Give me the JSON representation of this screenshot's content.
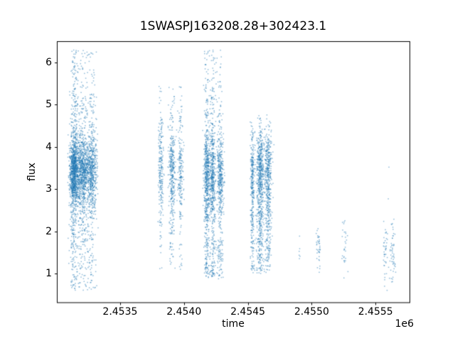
{
  "chart_data": {
    "type": "scatter",
    "title": "1SWASPJ163208.28+302423.1",
    "xlabel": "time",
    "ylabel": "flux",
    "x_offset_label": "1e6",
    "xlim": [
      2453005,
      2455766
    ],
    "ylim": [
      0.318,
      6.505
    ],
    "xticks": [
      2453500,
      2454000,
      2454500,
      2455000,
      2455500
    ],
    "xtick_labels": [
      "2.4535",
      "2.4540",
      "2.4545",
      "2.4550",
      "2.4555"
    ],
    "yticks": [
      1,
      2,
      3,
      4,
      5,
      6
    ],
    "ytick_labels": [
      "1",
      "2",
      "3",
      "4",
      "5",
      "6"
    ],
    "grid": false,
    "legend": null,
    "marker_color": "#1f77b4",
    "marker_alpha": 0.5,
    "marker_size_px": 1.5,
    "axes_color": "#000000",
    "background_color": "#ffffff",
    "description": "SuperWASP light curve: flux vs HJD time, observing seasons appear as dense vertical clusters",
    "clusters": [
      {
        "name": "season-1",
        "n": 3000,
        "t_range": [
          2453090,
          2453330
        ],
        "x_cols": [
          [
            2453139,
            16,
            0.42
          ],
          [
            2453211,
            28,
            0.38
          ],
          [
            2453283,
            18,
            0.2
          ]
        ],
        "flux_range": [
          0.55,
          6.3
        ],
        "flux_mix": [
          [
            "n",
            3.42,
            0.4,
            0.6
          ],
          [
            "n",
            3.55,
            0.8,
            0.26
          ],
          [
            "u",
            4.6,
            6.3,
            0.05
          ],
          [
            "u",
            0.6,
            2.7,
            0.09
          ]
        ]
      },
      {
        "name": "season-2",
        "n": 800,
        "t_range": [
          2453795,
          2454010
        ],
        "x_cols": [
          [
            2453818,
            10,
            0.3
          ],
          [
            2453907,
            13,
            0.42
          ],
          [
            2453974,
            10,
            0.28
          ]
        ],
        "flux_range": [
          1.0,
          5.45
        ],
        "flux_mix": [
          [
            "n",
            3.45,
            0.5,
            0.55
          ],
          [
            "n",
            3.3,
            0.85,
            0.33
          ],
          [
            "u",
            4.4,
            5.45,
            0.05
          ],
          [
            "u",
            1.05,
            2.3,
            0.07
          ]
        ]
      },
      {
        "name": "season-3",
        "n": 1700,
        "t_range": [
          2454145,
          2454320
        ],
        "x_cols": [
          [
            2454179,
            11,
            0.38
          ],
          [
            2454224,
            12,
            0.34
          ],
          [
            2454285,
            13,
            0.28
          ]
        ],
        "flux_range": [
          0.85,
          6.3
        ],
        "flux_mix": [
          [
            "n",
            3.3,
            0.55,
            0.52
          ],
          [
            "n",
            3.1,
            1.0,
            0.33
          ],
          [
            "u",
            4.7,
            6.3,
            0.05
          ],
          [
            "u",
            0.9,
            1.8,
            0.1
          ]
        ]
      },
      {
        "name": "season-4",
        "n": 1500,
        "t_range": [
          2454515,
          2454705
        ],
        "x_cols": [
          [
            2454536,
            8,
            0.22
          ],
          [
            2454597,
            14,
            0.43
          ],
          [
            2454658,
            14,
            0.35
          ]
        ],
        "flux_range": [
          1.0,
          4.8
        ],
        "flux_mix": [
          [
            "n",
            3.45,
            0.42,
            0.45
          ],
          [
            "n",
            2.9,
            0.85,
            0.38
          ],
          [
            "u",
            1.0,
            2.5,
            0.15
          ],
          [
            "u",
            4.2,
            4.7,
            0.02
          ]
        ]
      },
      {
        "name": "season-5a",
        "n": 6,
        "t_range": [
          2454895,
          2454912
        ],
        "x_cols": [
          [
            2454903,
            6,
            1.0
          ]
        ],
        "flux_range": [
          1.25,
          1.95
        ],
        "flux_mix": [
          [
            "u",
            1.25,
            1.95,
            1.0
          ]
        ]
      },
      {
        "name": "season-5b",
        "n": 38,
        "t_range": [
          2455030,
          2455078
        ],
        "x_cols": [
          [
            2455053,
            9,
            1.0
          ]
        ],
        "flux_range": [
          0.68,
          2.2
        ],
        "flux_mix": [
          [
            "n",
            1.55,
            0.28,
            0.7
          ],
          [
            "u",
            0.7,
            2.2,
            0.3
          ]
        ]
      },
      {
        "name": "season-6",
        "n": 30,
        "t_range": [
          2455235,
          2455290
        ],
        "x_cols": [
          [
            2455259,
            11,
            1.0
          ]
        ],
        "flux_range": [
          0.72,
          2.3
        ],
        "flux_mix": [
          [
            "n",
            1.6,
            0.5,
            0.6
          ],
          [
            "u",
            0.75,
            2.3,
            0.4
          ]
        ]
      },
      {
        "name": "season-7",
        "n": 95,
        "t_range": [
          2455552,
          2455668
        ],
        "x_cols": [
          [
            2455577,
            10,
            0.45
          ],
          [
            2455633,
            11,
            0.55
          ]
        ],
        "flux_range": [
          0.58,
          2.3
        ],
        "flux_mix": [
          [
            "n",
            1.5,
            0.38,
            0.75
          ],
          [
            "u",
            0.62,
            2.3,
            0.25
          ]
        ],
        "outliers": [
          [
            2455605,
            3.52
          ],
          [
            2455600,
            2.77
          ]
        ]
      }
    ]
  }
}
